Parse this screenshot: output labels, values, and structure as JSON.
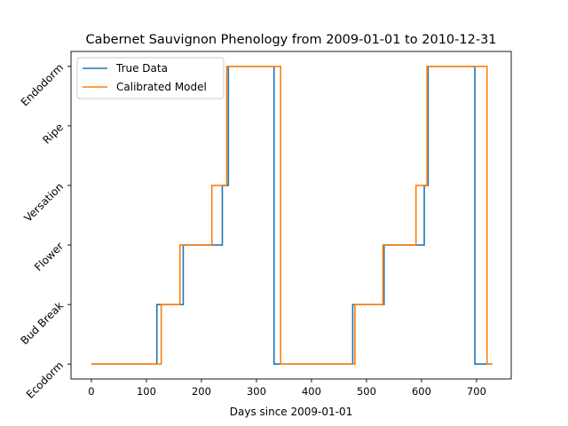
{
  "chart_data": {
    "type": "line",
    "title": "Cabernet Sauvignon Phenology from 2009-01-01 to 2010-12-31",
    "xlabel": "Days since 2009-01-01",
    "ylabel": "",
    "xlim": [
      -37,
      763
    ],
    "ylim": [
      -0.25,
      5.25
    ],
    "x_ticks": [
      0,
      100,
      200,
      300,
      400,
      500,
      600,
      700
    ],
    "y_ticks": [
      "Ecodorm",
      "Bud Break",
      "Flower",
      "Versation",
      "Ripe",
      "Endodorm"
    ],
    "grid": false,
    "legend": "top-left",
    "series": [
      {
        "name": "True Data",
        "color": "#1f77b4",
        "x": [
          0,
          119,
          119,
          167,
          167,
          238,
          238,
          249,
          249,
          332,
          332,
          475,
          475,
          532,
          532,
          605,
          605,
          612,
          612,
          697,
          697,
          729
        ],
        "y": [
          0,
          0,
          1,
          1,
          2,
          2,
          3,
          3,
          5,
          5,
          0,
          0,
          1,
          1,
          2,
          2,
          3,
          3,
          5,
          5,
          0,
          0
        ]
      },
      {
        "name": "Calibrated Model",
        "color": "#ff7f0e",
        "x": [
          0,
          127,
          127,
          161,
          161,
          219,
          219,
          246,
          246,
          344,
          344,
          479,
          479,
          530,
          530,
          590,
          590,
          610,
          610,
          719,
          719,
          729
        ],
        "y": [
          0,
          0,
          1,
          1,
          2,
          2,
          3,
          3,
          5,
          5,
          0,
          0,
          1,
          1,
          2,
          2,
          3,
          3,
          5,
          5,
          0,
          0
        ]
      }
    ]
  }
}
